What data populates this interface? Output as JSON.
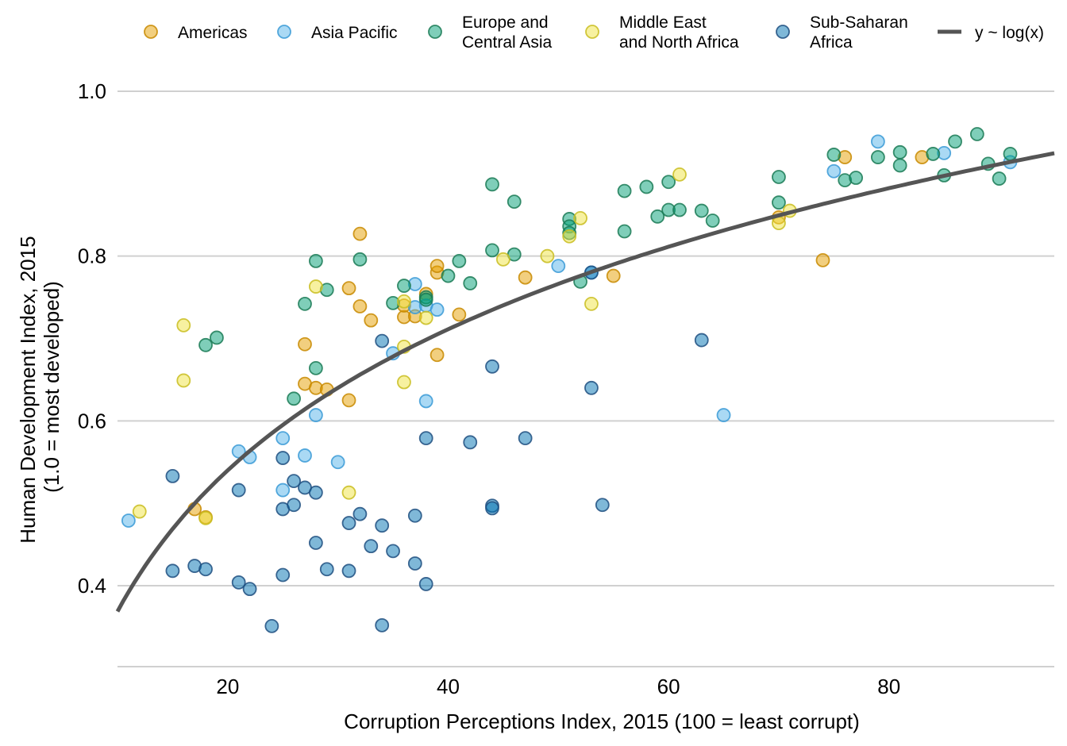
{
  "chart_data": {
    "type": "scatter",
    "title": "",
    "xlabel": "Corruption Perceptions Index, 2015 (100 = least corrupt)",
    "ylabel_lines": [
      "Human Development Index, 2015",
      "(1.0 = most developed)"
    ],
    "xlim": [
      10,
      95
    ],
    "ylim": [
      0.3,
      1.0
    ],
    "x_ticks": [
      20,
      40,
      60,
      80
    ],
    "x_tick_labels": [
      "20",
      "40",
      "60",
      "80"
    ],
    "y_ticks": [
      0.4,
      0.6,
      0.8,
      1.0
    ],
    "y_tick_labels": [
      "0.4",
      "0.6",
      "0.8",
      "1.0"
    ],
    "grid": "horizontal major",
    "legend_position": "top",
    "series": [
      {
        "name": "Americas",
        "label_lines": [
          "Americas"
        ],
        "fill": "#E69F00",
        "stroke": "#C88A00",
        "points": [
          [
            17,
            0.493
          ],
          [
            18,
            0.483
          ],
          [
            27,
            0.693
          ],
          [
            27,
            0.645
          ],
          [
            28,
            0.64
          ],
          [
            29,
            0.638
          ],
          [
            31,
            0.625
          ],
          [
            31,
            0.761
          ],
          [
            32,
            0.739
          ],
          [
            32,
            0.827
          ],
          [
            33,
            0.722
          ],
          [
            36,
            0.726
          ],
          [
            36,
            0.74
          ],
          [
            37,
            0.727
          ],
          [
            38,
            0.754
          ],
          [
            39,
            0.78
          ],
          [
            39,
            0.788
          ],
          [
            39,
            0.68
          ],
          [
            41,
            0.729
          ],
          [
            47,
            0.774
          ],
          [
            55,
            0.776
          ],
          [
            70,
            0.847
          ],
          [
            74,
            0.795
          ],
          [
            76,
            0.92
          ],
          [
            83,
            0.92
          ]
        ]
      },
      {
        "name": "Asia Pacific",
        "label_lines": [
          "Asia Pacific"
        ],
        "fill": "#56B4E9",
        "stroke": "#3A9AD6",
        "points": [
          [
            11,
            0.479
          ],
          [
            21,
            0.563
          ],
          [
            22,
            0.556
          ],
          [
            25,
            0.579
          ],
          [
            25,
            0.516
          ],
          [
            27,
            0.558
          ],
          [
            28,
            0.607
          ],
          [
            30,
            0.55
          ],
          [
            35,
            0.682
          ],
          [
            37,
            0.766
          ],
          [
            37,
            0.738
          ],
          [
            38,
            0.74
          ],
          [
            38,
            0.624
          ],
          [
            39,
            0.735
          ],
          [
            50,
            0.788
          ],
          [
            53,
            0.78
          ],
          [
            65,
            0.607
          ],
          [
            75,
            0.903
          ],
          [
            79,
            0.939
          ],
          [
            85,
            0.925
          ],
          [
            91,
            0.914
          ]
        ]
      },
      {
        "name": "Europe and Central Asia",
        "label_lines": [
          "Europe and",
          "Central Asia"
        ],
        "fill": "#009E73",
        "stroke": "#1A7A55",
        "points": [
          [
            18,
            0.692
          ],
          [
            19,
            0.701
          ],
          [
            26,
            0.627
          ],
          [
            27,
            0.742
          ],
          [
            28,
            0.794
          ],
          [
            28,
            0.664
          ],
          [
            29,
            0.759
          ],
          [
            32,
            0.796
          ],
          [
            35,
            0.743
          ],
          [
            36,
            0.764
          ],
          [
            38,
            0.75
          ],
          [
            38,
            0.747
          ],
          [
            40,
            0.776
          ],
          [
            41,
            0.794
          ],
          [
            42,
            0.767
          ],
          [
            44,
            0.807
          ],
          [
            44,
            0.887
          ],
          [
            46,
            0.802
          ],
          [
            46,
            0.866
          ],
          [
            51,
            0.845
          ],
          [
            51,
            0.836
          ],
          [
            51,
            0.828
          ],
          [
            52,
            0.769
          ],
          [
            56,
            0.879
          ],
          [
            56,
            0.83
          ],
          [
            58,
            0.884
          ],
          [
            59,
            0.848
          ],
          [
            60,
            0.856
          ],
          [
            60,
            0.89
          ],
          [
            61,
            0.856
          ],
          [
            63,
            0.855
          ],
          [
            64,
            0.843
          ],
          [
            70,
            0.865
          ],
          [
            70,
            0.896
          ],
          [
            75,
            0.923
          ],
          [
            76,
            0.892
          ],
          [
            77,
            0.895
          ],
          [
            79,
            0.92
          ],
          [
            81,
            0.91
          ],
          [
            81,
            0.926
          ],
          [
            84,
            0.924
          ],
          [
            85,
            0.898
          ],
          [
            86,
            0.939
          ],
          [
            88,
            0.948
          ],
          [
            89,
            0.912
          ],
          [
            90,
            0.894
          ],
          [
            91,
            0.924
          ]
        ]
      },
      {
        "name": "Middle East and North Africa",
        "label_lines": [
          "Middle East",
          "and North Africa"
        ],
        "fill": "#F0E442",
        "stroke": "#C9BD20",
        "points": [
          [
            12,
            0.49
          ],
          [
            16,
            0.716
          ],
          [
            16,
            0.649
          ],
          [
            18,
            0.482
          ],
          [
            28,
            0.763
          ],
          [
            31,
            0.513
          ],
          [
            36,
            0.745
          ],
          [
            36,
            0.69
          ],
          [
            36,
            0.647
          ],
          [
            38,
            0.725
          ],
          [
            45,
            0.796
          ],
          [
            49,
            0.8
          ],
          [
            51,
            0.824
          ],
          [
            52,
            0.846
          ],
          [
            53,
            0.742
          ],
          [
            61,
            0.899
          ],
          [
            70,
            0.84
          ],
          [
            71,
            0.855
          ]
        ]
      },
      {
        "name": "Sub-Saharan Africa",
        "label_lines": [
          "Sub-Saharan",
          "Africa"
        ],
        "fill": "#0072B2",
        "stroke": "#1F4F80",
        "points": [
          [
            15,
            0.533
          ],
          [
            15,
            0.418
          ],
          [
            17,
            0.424
          ],
          [
            18,
            0.42
          ],
          [
            21,
            0.516
          ],
          [
            21,
            0.404
          ],
          [
            22,
            0.396
          ],
          [
            24,
            0.351
          ],
          [
            25,
            0.555
          ],
          [
            25,
            0.493
          ],
          [
            25,
            0.413
          ],
          [
            26,
            0.527
          ],
          [
            26,
            0.498
          ],
          [
            27,
            0.519
          ],
          [
            28,
            0.513
          ],
          [
            28,
            0.452
          ],
          [
            29,
            0.42
          ],
          [
            31,
            0.476
          ],
          [
            31,
            0.418
          ],
          [
            32,
            0.487
          ],
          [
            33,
            0.448
          ],
          [
            34,
            0.697
          ],
          [
            34,
            0.473
          ],
          [
            34,
            0.352
          ],
          [
            35,
            0.442
          ],
          [
            37,
            0.485
          ],
          [
            37,
            0.427
          ],
          [
            38,
            0.579
          ],
          [
            38,
            0.402
          ],
          [
            42,
            0.574
          ],
          [
            44,
            0.666
          ],
          [
            44,
            0.497
          ],
          [
            44,
            0.494
          ],
          [
            47,
            0.579
          ],
          [
            53,
            0.64
          ],
          [
            53,
            0.78
          ],
          [
            54,
            0.498
          ],
          [
            63,
            0.698
          ]
        ]
      }
    ],
    "trend_line": {
      "name": "y ~ log(x)",
      "color": "#555555",
      "model": "log",
      "intercept": -0.2,
      "slope": 0.247
    }
  }
}
